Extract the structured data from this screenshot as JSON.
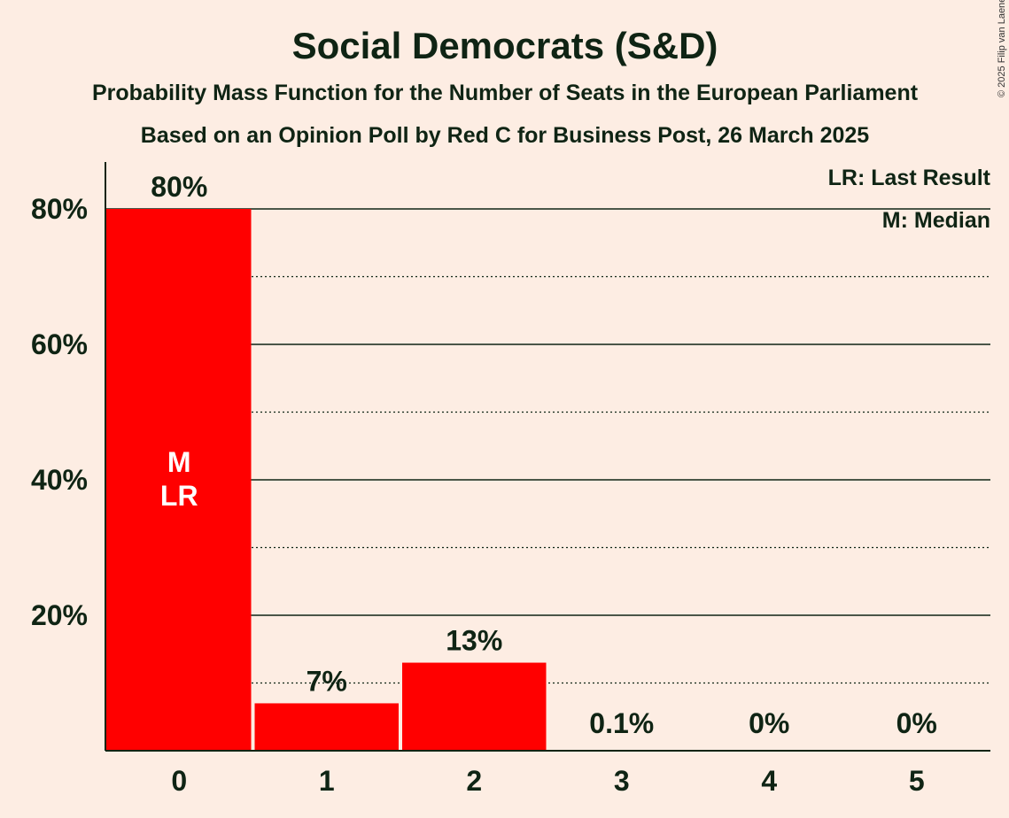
{
  "title": "Social Democrats (S&D)",
  "subtitle1": "Probability Mass Function for the Number of Seats in the European Parliament",
  "subtitle2": "Based on an Opinion Poll by Red C for Business Post, 26 March 2025",
  "copyright": "© 2025 Filip van Laenen",
  "legend": {
    "lr": "LR: Last Result",
    "m": "M: Median"
  },
  "colors": {
    "background": "#FDEDE3",
    "bar": "#FF0000",
    "text": "#0f2414"
  },
  "chart_data": {
    "type": "bar",
    "title": "Social Democrats (S&D)",
    "xlabel": "",
    "ylabel": "",
    "categories": [
      "0",
      "1",
      "2",
      "3",
      "4",
      "5"
    ],
    "values": [
      80,
      7,
      13,
      0.1,
      0,
      0
    ],
    "labels": [
      "80%",
      "7%",
      "13%",
      "0.1%",
      "0%",
      "0%"
    ],
    "bar_markers": [
      [
        "M",
        "LR"
      ],
      [],
      [],
      [],
      [],
      []
    ],
    "ylim": [
      0,
      87
    ],
    "yticks": [
      20,
      40,
      60,
      80
    ],
    "ytick_labels": [
      "20%",
      "40%",
      "60%",
      "80%"
    ],
    "minor_gridlines": [
      10,
      30,
      50,
      70
    ],
    "grid": true,
    "legend_position": "top-right"
  }
}
